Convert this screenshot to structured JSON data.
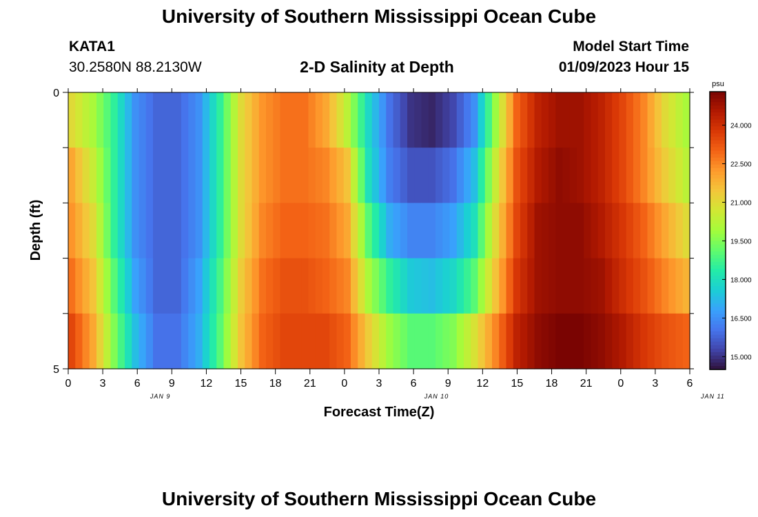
{
  "header": {
    "title": "University of Southern Mississippi Ocean Cube",
    "station": "KATA1",
    "coordinates": "30.2580N  88.2130W",
    "plot_title": "2-D Salinity at Depth",
    "model_start_label": "Model Start Time",
    "model_start_value": "01/09/2023 Hour 15"
  },
  "footer": {
    "title": "University of Southern Mississippi Ocean Cube"
  },
  "chart_data": {
    "type": "heatmap",
    "title": "2-D Salinity at Depth",
    "xlabel": "Forecast Time(Z)",
    "ylabel": "Depth (ft)",
    "x_tick_labels": [
      "0",
      "3",
      "6",
      "9",
      "12",
      "15",
      "18",
      "21",
      "0",
      "3",
      "6",
      "9",
      "12",
      "15",
      "18",
      "21",
      "0",
      "3",
      "6"
    ],
    "date_labels": [
      "JAN 9",
      "JAN 10",
      "JAN 11"
    ],
    "y_tick_labels": [
      "0",
      "5"
    ],
    "ylim": [
      0,
      5
    ],
    "x_hours": [
      0,
      3,
      6,
      9,
      12,
      15,
      18,
      21,
      24,
      27,
      30,
      33,
      36,
      39,
      42,
      45,
      48,
      51,
      54
    ],
    "depth_rows": 5,
    "values": [
      [
        21.0,
        20.0,
        18.5,
        16.5,
        15.8,
        15.8,
        16.5,
        18.5,
        21.0,
        22.3,
        22.8,
        22.8,
        22.0,
        20.3,
        17.8,
        16.0,
        15.0,
        14.8,
        15.3,
        16.5,
        19.8,
        23.0,
        24.3,
        24.8,
        24.8,
        24.3,
        23.5,
        22.5,
        21.0,
        20.0
      ],
      [
        22.0,
        20.5,
        18.5,
        16.5,
        15.8,
        15.8,
        16.5,
        18.5,
        21.0,
        22.3,
        22.8,
        22.8,
        22.5,
        21.5,
        18.0,
        16.2,
        15.5,
        15.5,
        16.0,
        17.3,
        20.5,
        23.3,
        24.5,
        25.0,
        24.8,
        24.3,
        23.5,
        22.5,
        21.3,
        20.3
      ],
      [
        22.3,
        21.0,
        18.5,
        16.5,
        15.8,
        15.8,
        16.5,
        18.5,
        21.0,
        22.5,
        23.0,
        23.0,
        22.8,
        22.0,
        19.0,
        17.0,
        16.3,
        16.3,
        16.8,
        18.0,
        21.0,
        23.5,
        24.8,
        25.0,
        25.0,
        24.5,
        23.8,
        23.0,
        22.0,
        21.0
      ],
      [
        22.8,
        21.5,
        19.0,
        16.8,
        15.8,
        15.8,
        16.8,
        18.8,
        21.3,
        22.8,
        23.3,
        23.3,
        23.0,
        22.5,
        20.0,
        18.5,
        17.5,
        17.3,
        17.8,
        19.0,
        21.5,
        23.8,
        24.8,
        25.0,
        25.0,
        24.8,
        24.0,
        23.3,
        22.5,
        21.8
      ],
      [
        23.5,
        22.0,
        19.5,
        17.3,
        16.0,
        16.0,
        17.0,
        19.0,
        21.5,
        23.0,
        23.5,
        23.5,
        23.5,
        23.0,
        21.3,
        19.8,
        19.0,
        19.0,
        19.5,
        20.8,
        22.5,
        24.3,
        25.0,
        25.3,
        25.3,
        25.0,
        24.5,
        23.8,
        23.3,
        23.0
      ]
    ],
    "colorbar": {
      "unit": "psu",
      "range": [
        14.5,
        25.3
      ],
      "tick_labels": [
        "24.000",
        "22.500",
        "21.000",
        "19.500",
        "18.000",
        "16.500",
        "15.000"
      ],
      "tick_values": [
        24.0,
        22.5,
        21.0,
        19.5,
        18.0,
        16.5,
        15.0
      ],
      "colormap": [
        "#30123b",
        "#4145ab",
        "#4675ed",
        "#39a2fc",
        "#1bcfd4",
        "#24eca6",
        "#61fc6c",
        "#a4fc3b",
        "#d1e834",
        "#f3c63a",
        "#fe9b2d",
        "#f36315",
        "#d93806",
        "#b11901",
        "#7a0402"
      ]
    },
    "grid": false
  }
}
